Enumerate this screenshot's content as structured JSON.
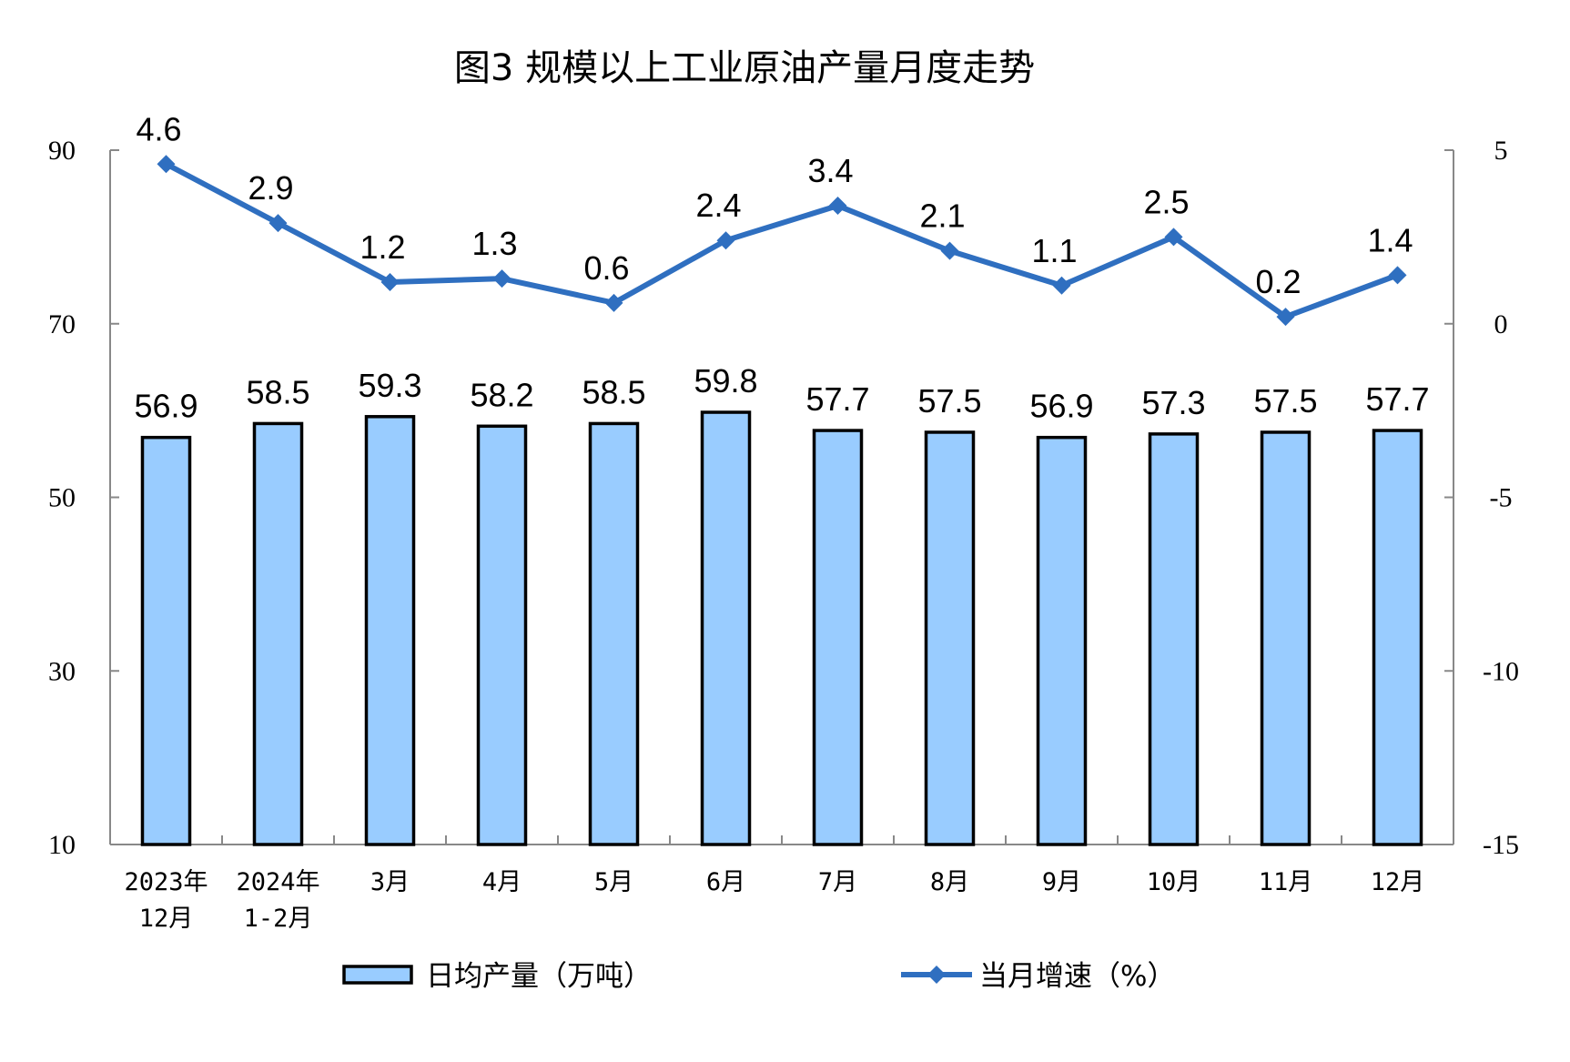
{
  "chart_data": {
    "type": "bar+line",
    "title": "图3  规模以上工业原油产量月度走势",
    "categories": [
      [
        "2023年",
        "12月"
      ],
      [
        "2024年",
        "1-2月"
      ],
      [
        "3月"
      ],
      [
        "4月"
      ],
      [
        "5月"
      ],
      [
        "6月"
      ],
      [
        "7月"
      ],
      [
        "8月"
      ],
      [
        "9月"
      ],
      [
        "10月"
      ],
      [
        "11月"
      ],
      [
        "12月"
      ]
    ],
    "series": [
      {
        "name": "日均产量（万吨）",
        "type": "bar",
        "axis": "left",
        "color": "#99CCFF",
        "values": [
          56.9,
          58.5,
          59.3,
          58.2,
          58.5,
          59.8,
          57.7,
          57.5,
          56.9,
          57.3,
          57.5,
          57.7
        ]
      },
      {
        "name": "当月增速（%）",
        "type": "line",
        "axis": "right",
        "color": "#2F6FC0",
        "values": [
          4.6,
          2.9,
          1.2,
          1.3,
          0.6,
          2.4,
          3.4,
          2.1,
          1.1,
          2.5,
          0.2,
          1.4
        ]
      }
    ],
    "left_axis": {
      "ylim": [
        10,
        90
      ],
      "ticks": [
        90,
        70,
        50,
        30,
        10
      ]
    },
    "right_axis": {
      "ylim": [
        -15,
        5
      ],
      "ticks": [
        5,
        0,
        -5,
        -10,
        -15
      ]
    },
    "grid": false,
    "legend_position": "bottom"
  }
}
